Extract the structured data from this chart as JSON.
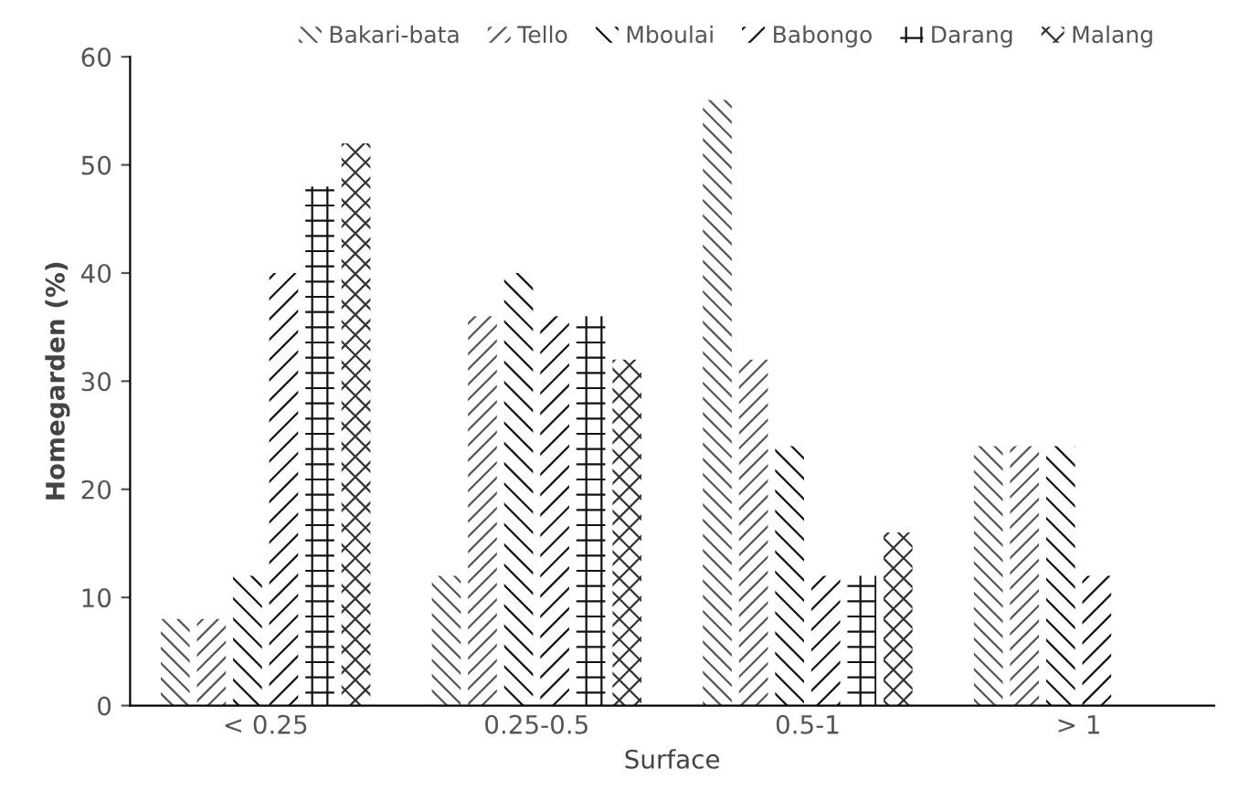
{
  "chart_data": {
    "type": "bar",
    "xlabel": "Surface",
    "ylabel": "Homegarden (%)",
    "categories": [
      "< 0.25",
      "0.25-0.5",
      "0.5-1",
      "> 1"
    ],
    "series": [
      {
        "name": "Bakari-bata",
        "color": "#555555",
        "values": [
          8,
          12,
          56,
          24
        ]
      },
      {
        "name": "Tello",
        "color": "#555555",
        "values": [
          8,
          36,
          32,
          24
        ]
      },
      {
        "name": "Mboulai",
        "color": "#111111",
        "values": [
          12,
          40,
          24,
          24
        ]
      },
      {
        "name": "Babongo",
        "color": "#111111",
        "values": [
          40,
          36,
          12,
          12
        ]
      },
      {
        "name": "Darang",
        "color": "#111111",
        "values": [
          48,
          36,
          12,
          null
        ]
      },
      {
        "name": "Malang",
        "color": "#333333",
        "values": [
          52,
          32,
          16,
          null
        ]
      }
    ],
    "ylim": [
      0,
      60
    ],
    "yticks": [
      0,
      10,
      20,
      30,
      40,
      50,
      60
    ],
    "grid": false,
    "legend": "top"
  }
}
